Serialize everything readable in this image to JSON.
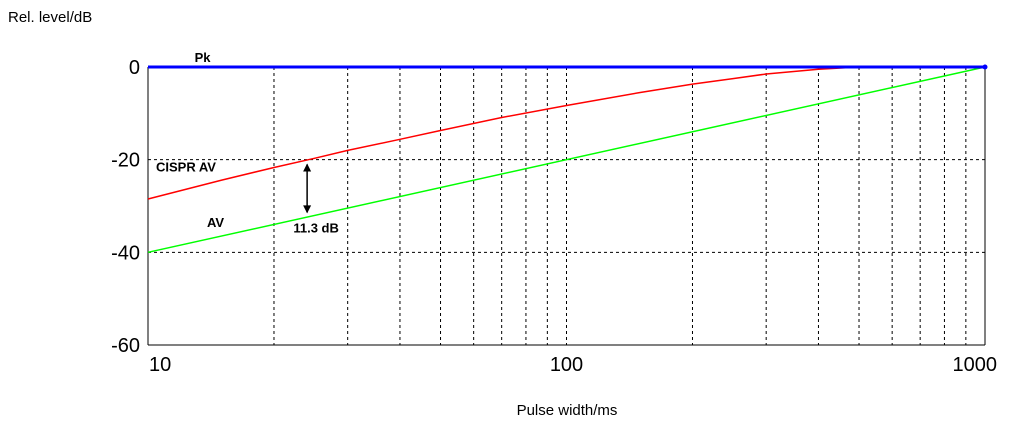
{
  "chart_data": {
    "type": "line",
    "xscale": "log",
    "xlim": [
      10,
      1000
    ],
    "ylim": [
      -60,
      0
    ],
    "xlabel": "Pulse width/ms",
    "ylabel": "Rel. level/dB",
    "x_ticks": [
      "10",
      "100",
      "1000"
    ],
    "y_ticks": [
      "0",
      "-20",
      "-40",
      "-60"
    ],
    "grid": true,
    "series": [
      {
        "name": "Pk",
        "color": "#0000ff",
        "x": [
          10,
          1000
        ],
        "y": [
          0,
          0
        ]
      },
      {
        "name": "CISPR AV",
        "color": "#ff0000",
        "x": [
          10,
          15,
          20,
          25,
          30,
          40,
          50,
          70,
          100,
          150,
          200,
          250,
          300,
          400,
          500
        ],
        "y": [
          -28.5,
          -24.4,
          -21.7,
          -19.7,
          -18.0,
          -15.6,
          -13.7,
          -10.9,
          -8.3,
          -5.5,
          -3.7,
          -2.5,
          -1.5,
          -0.5,
          0
        ]
      },
      {
        "name": "AV",
        "color": "#00ff00",
        "x": [
          10,
          1000
        ],
        "y": [
          -40,
          0
        ]
      }
    ],
    "annotations": [
      {
        "text": "11.3 dB",
        "x": 24,
        "y_top": -20.6,
        "y_bottom": -31.8
      }
    ]
  }
}
